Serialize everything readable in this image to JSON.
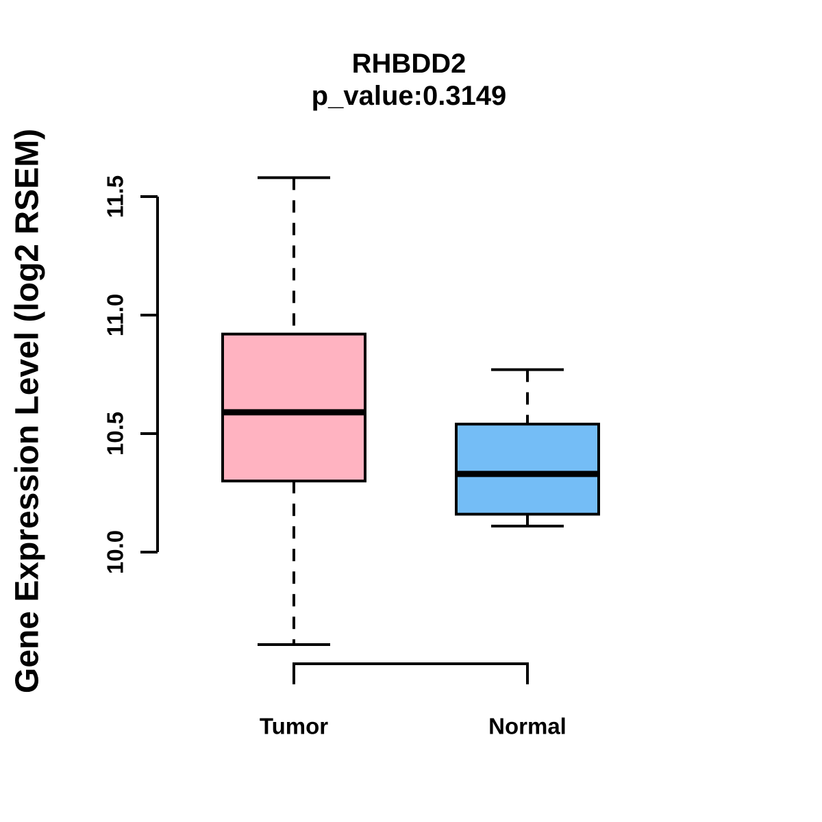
{
  "chart_data": {
    "type": "boxplot",
    "title": "RHBDD2",
    "subtitle": "p_value:0.3149",
    "ylabel": "Gene Expression Level (log2 RSEM)",
    "xlabel": "",
    "ylim": [
      9.6,
      11.6
    ],
    "ytick_values": [
      10.0,
      10.5,
      11.0,
      11.5
    ],
    "ytick_labels": [
      "10.0",
      "10.5",
      "11.0",
      "11.5"
    ],
    "grid": false,
    "legend": "none",
    "categories": [
      "Tumor",
      "Normal"
    ],
    "series": [
      {
        "name": "Tumor",
        "box_color": "#FFB3C1",
        "border_color": "#000000",
        "whisker_low": 9.61,
        "q1": 10.3,
        "median": 10.59,
        "q3": 10.92,
        "whisker_high": 11.58
      },
      {
        "name": "Normal",
        "box_color": "#74BDF6",
        "border_color": "#000000",
        "whisker_low": 10.11,
        "q1": 10.16,
        "median": 10.33,
        "q3": 10.54,
        "whisker_high": 10.77
      }
    ]
  }
}
